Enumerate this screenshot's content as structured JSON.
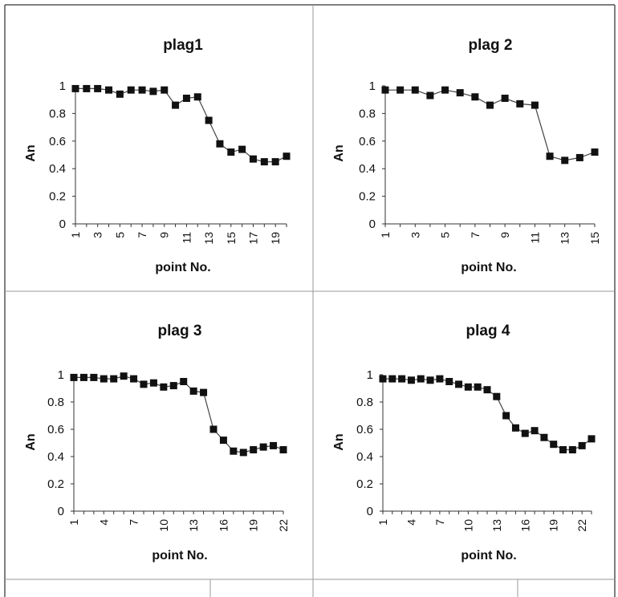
{
  "colors": {
    "line": "#444444",
    "marker": "#111111",
    "axis": "#333333"
  },
  "chart_data": [
    {
      "type": "line",
      "title": "plag1",
      "xlabel": "point No.",
      "ylabel": "An",
      "ylim": [
        0,
        1
      ],
      "yticks": [
        "0",
        "0.2",
        "0.4",
        "0.6",
        "0.8",
        "1"
      ],
      "xticks": [
        "1",
        "3",
        "5",
        "7",
        "9",
        "11",
        "13",
        "15",
        "17",
        "19"
      ],
      "xlim": [
        1,
        20
      ],
      "grid": false,
      "series": [
        {
          "x": [
            1,
            2,
            3,
            4,
            5,
            6,
            7,
            8,
            9,
            10,
            11,
            12,
            13,
            14,
            15,
            16,
            17,
            18,
            19,
            20
          ],
          "values": [
            0.98,
            0.98,
            0.98,
            0.97,
            0.94,
            0.97,
            0.97,
            0.96,
            0.97,
            0.86,
            0.91,
            0.92,
            0.75,
            0.58,
            0.52,
            0.54,
            0.47,
            0.45,
            0.45,
            0.49
          ]
        }
      ]
    },
    {
      "type": "line",
      "title": "plag 2",
      "xlabel": "point No.",
      "ylabel": "An",
      "ylim": [
        0,
        1
      ],
      "yticks": [
        "0",
        "0.2",
        "0.4",
        "0.6",
        "0.8",
        "1"
      ],
      "xticks": [
        "1",
        "3",
        "5",
        "7",
        "9",
        "11",
        "13",
        "15"
      ],
      "xlim": [
        1,
        15
      ],
      "grid": false,
      "series": [
        {
          "x": [
            1,
            2,
            3,
            4,
            5,
            6,
            7,
            8,
            9,
            10,
            11,
            12,
            13,
            14,
            15
          ],
          "values": [
            0.97,
            0.97,
            0.97,
            0.93,
            0.97,
            0.95,
            0.92,
            0.86,
            0.91,
            0.87,
            0.86,
            0.49,
            0.46,
            0.48,
            0.52
          ]
        }
      ]
    },
    {
      "type": "line",
      "title": "plag 3",
      "xlabel": "point No.",
      "ylabel": "An",
      "ylim": [
        0,
        1
      ],
      "yticks": [
        "0",
        "0.2",
        "0.4",
        "0.6",
        "0.8",
        "1"
      ],
      "xticks": [
        "1",
        "4",
        "7",
        "10",
        "13",
        "16",
        "19",
        "22"
      ],
      "xlim": [
        1,
        22
      ],
      "grid": false,
      "series": [
        {
          "x": [
            1,
            2,
            3,
            4,
            5,
            6,
            7,
            8,
            9,
            10,
            11,
            12,
            13,
            14,
            15,
            16,
            17,
            18,
            19,
            20,
            21,
            22
          ],
          "values": [
            0.98,
            0.98,
            0.98,
            0.97,
            0.97,
            0.99,
            0.97,
            0.93,
            0.94,
            0.91,
            0.92,
            0.95,
            0.88,
            0.87,
            0.6,
            0.52,
            0.44,
            0.43,
            0.45,
            0.47,
            0.48,
            0.45
          ]
        }
      ]
    },
    {
      "type": "line",
      "title": "plag 4",
      "xlabel": "point No.",
      "ylabel": "An",
      "ylim": [
        0,
        1
      ],
      "yticks": [
        "0",
        "0.2",
        "0.4",
        "0.6",
        "0.8",
        "1"
      ],
      "xticks": [
        "1",
        "4",
        "7",
        "10",
        "13",
        "16",
        "19",
        "22"
      ],
      "xlim": [
        1,
        23
      ],
      "grid": false,
      "series": [
        {
          "x": [
            1,
            2,
            3,
            4,
            5,
            6,
            7,
            8,
            9,
            10,
            11,
            12,
            13,
            14,
            15,
            16,
            17,
            18,
            19,
            20,
            21,
            22,
            23
          ],
          "values": [
            0.97,
            0.97,
            0.97,
            0.96,
            0.97,
            0.96,
            0.97,
            0.95,
            0.93,
            0.91,
            0.91,
            0.89,
            0.84,
            0.7,
            0.61,
            0.57,
            0.59,
            0.54,
            0.49,
            0.45,
            0.45,
            0.48,
            0.53
          ]
        }
      ]
    }
  ]
}
